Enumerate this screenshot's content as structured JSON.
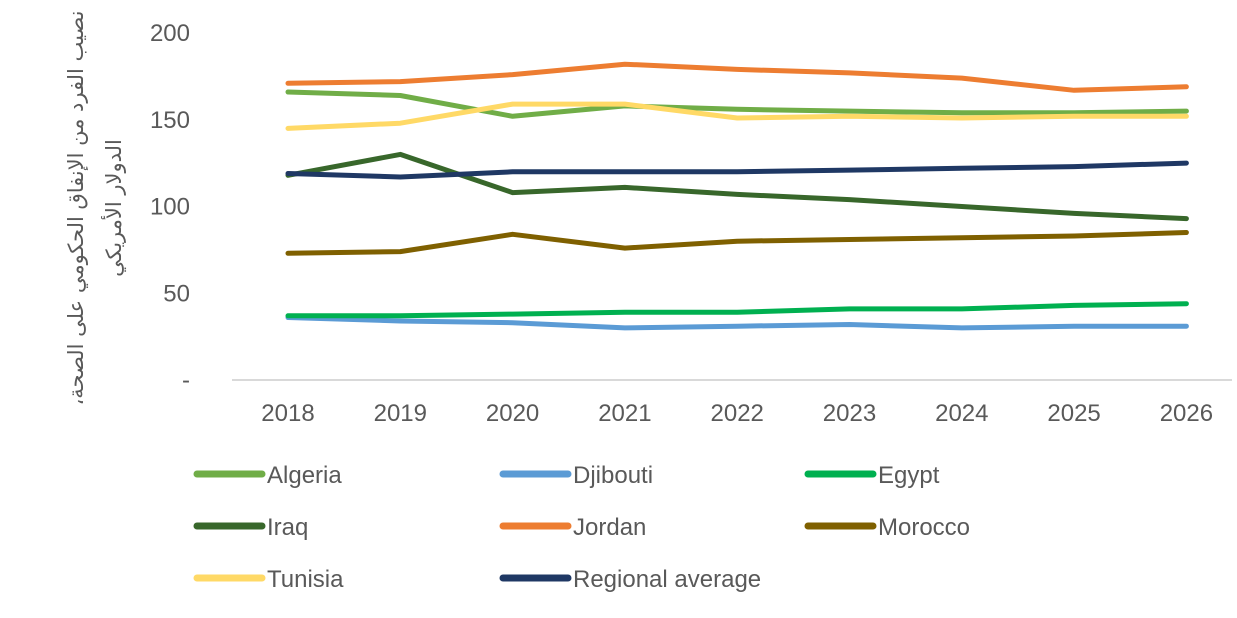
{
  "chart_data": {
    "type": "line",
    "title": "",
    "xlabel": "",
    "ylabel": "نصيب الفرد من الإنفاق الحكومي على الصحة، الدولار الأمريكي",
    "x": [
      "2018",
      "2019",
      "2020",
      "2021",
      "2022",
      "2023",
      "2024",
      "2025",
      "2026"
    ],
    "ylim": [
      0,
      200
    ],
    "yticks": [
      {
        "value": 0,
        "label": "-"
      },
      {
        "value": 50,
        "label": "50"
      },
      {
        "value": 100,
        "label": "100"
      },
      {
        "value": 150,
        "label": "150"
      },
      {
        "value": 200,
        "label": "200"
      }
    ],
    "grid": false,
    "legend_position": "bottom",
    "series": [
      {
        "name": "Algeria",
        "color": "#70AD47",
        "values": [
          166,
          164,
          152,
          158,
          156,
          155,
          154,
          154,
          155
        ]
      },
      {
        "name": "Djibouti",
        "color": "#5B9BD5",
        "values": [
          36,
          34,
          33,
          30,
          31,
          32,
          30,
          31,
          31
        ]
      },
      {
        "name": "Egypt",
        "color": "#00B050",
        "values": [
          37,
          37,
          38,
          39,
          39,
          41,
          41,
          43,
          44
        ]
      },
      {
        "name": "Iraq",
        "color": "#38672B",
        "values": [
          118,
          130,
          108,
          111,
          107,
          104,
          100,
          96,
          93
        ]
      },
      {
        "name": "Jordan",
        "color": "#ED7D31",
        "values": [
          171,
          172,
          176,
          182,
          179,
          177,
          174,
          167,
          169
        ]
      },
      {
        "name": "Morocco",
        "color": "#7F6000",
        "values": [
          73,
          74,
          84,
          76,
          80,
          81,
          82,
          83,
          85
        ]
      },
      {
        "name": "Tunisia",
        "color": "#FFD966",
        "values": [
          145,
          148,
          159,
          159,
          151,
          152,
          151,
          152,
          152
        ]
      },
      {
        "name": "Regional average",
        "color": "#1F3864",
        "values": [
          119,
          117,
          120,
          120,
          120,
          121,
          122,
          123,
          125
        ]
      }
    ]
  }
}
